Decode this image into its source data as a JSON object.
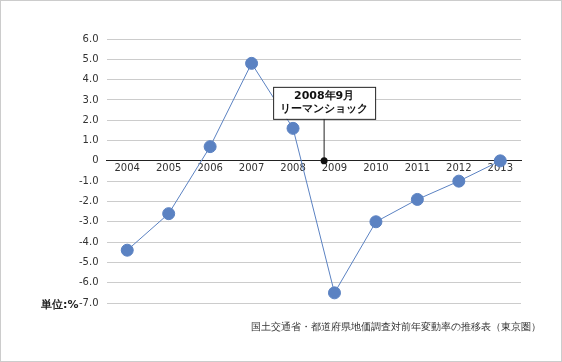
{
  "chart_data": {
    "type": "line",
    "x": [
      2004,
      2005,
      2006,
      2007,
      2008,
      2009,
      2010,
      2011,
      2012,
      2013
    ],
    "values": [
      -4.4,
      -2.6,
      0.7,
      4.8,
      1.6,
      -6.5,
      -3.0,
      -1.9,
      -1.0,
      0.0
    ],
    "color": "#5b82c2",
    "marker": "circle",
    "xlim": [
      2003.5,
      2013.5
    ],
    "xticks": [
      2004,
      2005,
      2006,
      2007,
      2008,
      2009,
      2010,
      2011,
      2012,
      2013
    ],
    "ylim": [
      -7,
      6
    ],
    "yticks": [
      {
        "value": 6,
        "label": "6.0"
      },
      {
        "value": 5,
        "label": "5.0"
      },
      {
        "value": 4,
        "label": "4.0"
      },
      {
        "value": 3,
        "label": "3.0"
      },
      {
        "value": 2,
        "label": "2.0"
      },
      {
        "value": 1,
        "label": "1.0"
      },
      0,
      {
        "value": -1,
        "label": "-1.0"
      },
      {
        "value": -2,
        "label": "-2.0"
      },
      {
        "value": -3,
        "label": "-3.0"
      },
      {
        "value": -4,
        "label": "-4.0"
      },
      {
        "value": -5,
        "label": "-5.0"
      },
      {
        "value": -6,
        "label": "-6.0"
      },
      {
        "value": -7,
        "label": "-7.0"
      }
    ],
    "grid": true,
    "ylabel": "単位:%",
    "source": "国土交通省・都道府県地価調査対前年変動率の推移表（東京圏）",
    "annotations": [
      {
        "text": [
          "2008年9月",
          "リーマンショック"
        ],
        "x": 2008.75,
        "y": 0
      }
    ]
  }
}
